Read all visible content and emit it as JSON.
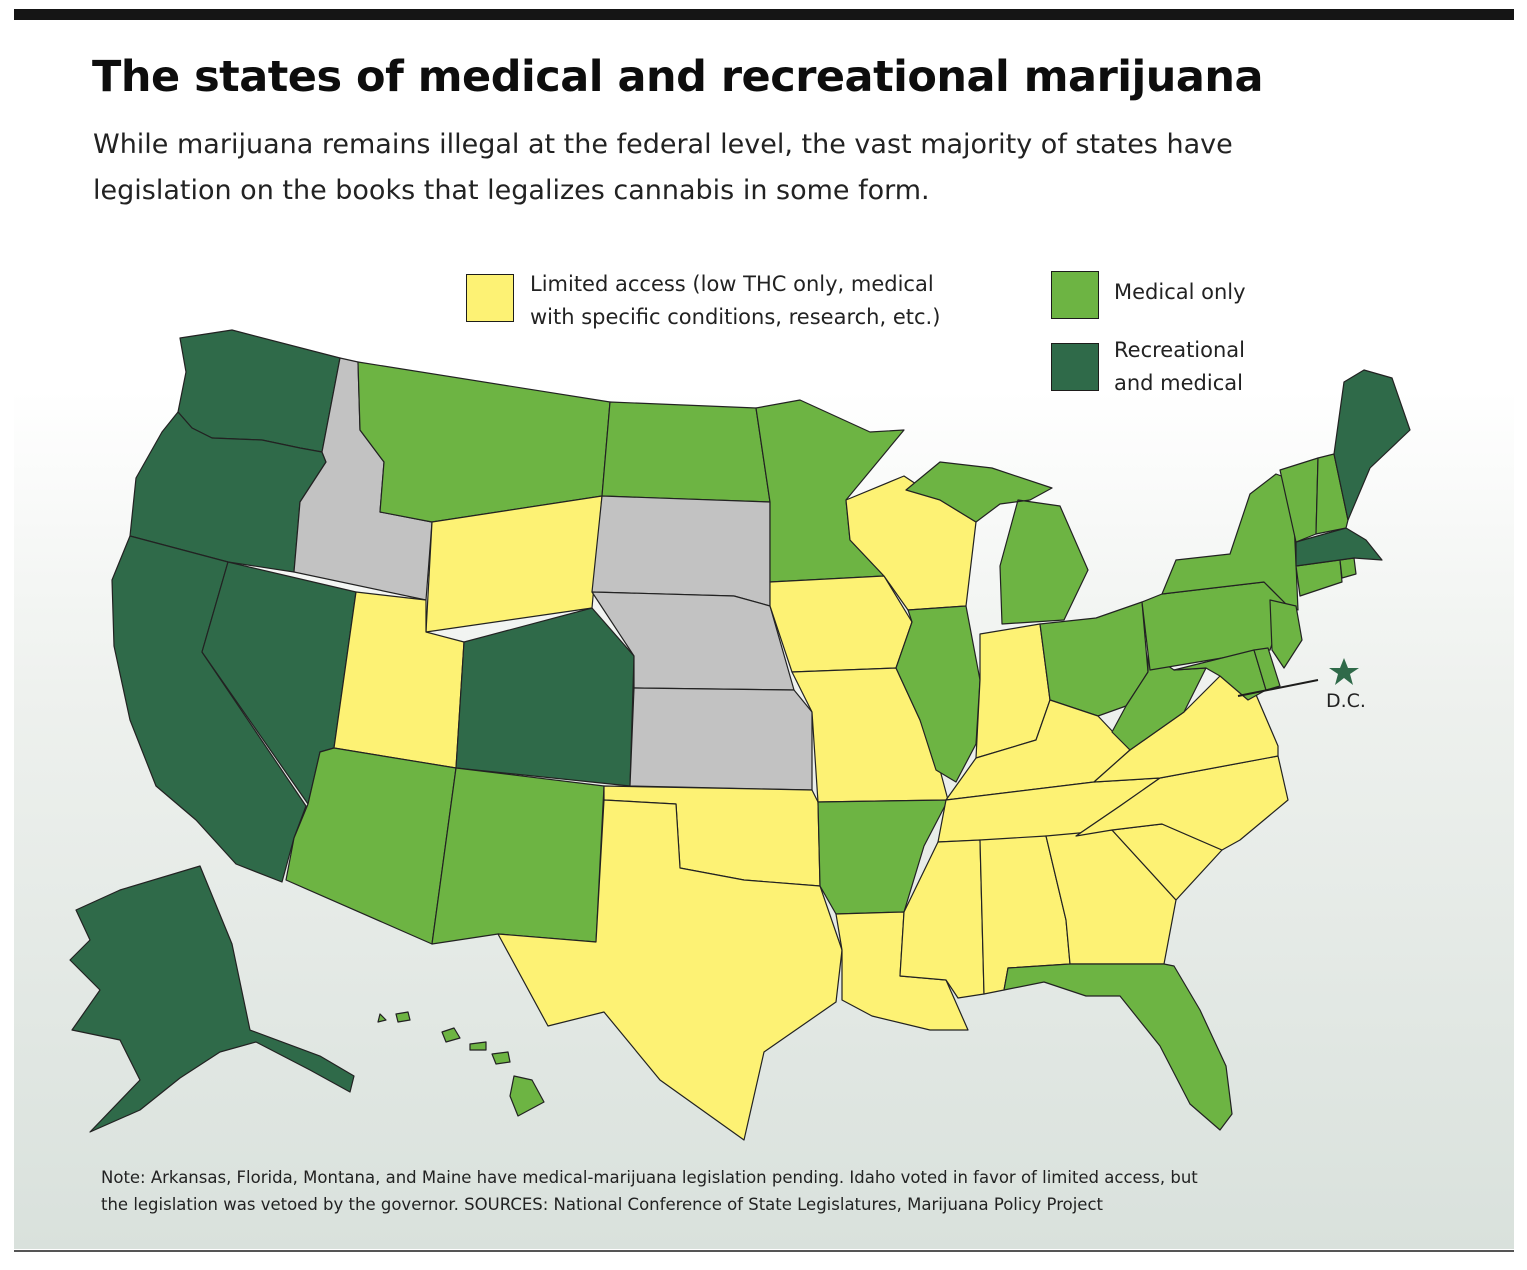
{
  "title": "The states of medical and recreational marijuana",
  "subtitle_lines": [
    "While marijuana remains illegal at the federal level, the vast majority of states have",
    "legislation on the books that legalizes cannabis in some form."
  ],
  "colors": {
    "limited": "#fdf274",
    "medical": "#6db443",
    "recreational": "#2f6a49",
    "none": "#c2c2c2"
  },
  "legend": {
    "limited": {
      "line1": "Limited access (low THC only, medical",
      "line2": "with specific conditions, research, etc.)"
    },
    "medical": {
      "line1": "Medical only"
    },
    "recreational": {
      "line1": "Recreational",
      "line2": "and medical"
    }
  },
  "dc": {
    "label": "D.C.",
    "category": "recreational"
  },
  "states": {
    "WA": "recreational",
    "OR": "recreational",
    "CA": "recreational",
    "NV": "recreational",
    "ID": "none",
    "MT": "medical",
    "WY": "limited",
    "UT": "limited",
    "AZ": "medical",
    "CO": "recreational",
    "NM": "medical",
    "ND": "medical",
    "SD": "none",
    "NE": "none",
    "KS": "none",
    "OK": "limited",
    "TX": "limited",
    "MN": "medical",
    "IA": "limited",
    "MO": "limited",
    "AR": "medical",
    "LA": "limited",
    "WI": "limited",
    "IL": "medical",
    "MI": "medical",
    "IN": "limited",
    "OH": "medical",
    "KY": "limited",
    "TN": "limited",
    "MS": "limited",
    "AL": "limited",
    "GA": "limited",
    "FL": "medical",
    "SC": "limited",
    "NC": "limited",
    "VA": "limited",
    "WV": "medical",
    "PA": "medical",
    "NY": "medical",
    "VT": "medical",
    "NH": "medical",
    "ME": "recreational",
    "MA": "recreational",
    "RI": "medical",
    "CT": "medical",
    "NJ": "medical",
    "DE": "medical",
    "MD": "medical",
    "AK": "recreational",
    "HI": "medical"
  },
  "note_lines": [
    "Note: Arkansas, Florida, Montana, and Maine have medical-marijuana legislation pending. Idaho voted in favor of limited access, but",
    "the legislation was vetoed by the governor.  SOURCES: National Conference of State Legislatures, Marijuana Policy Project"
  ]
}
